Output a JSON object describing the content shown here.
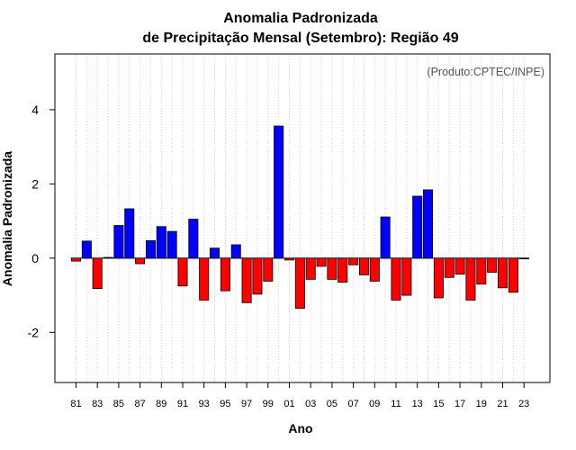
{
  "chart_data": {
    "type": "bar",
    "title_line1": "Anomalia Padronizada",
    "title_line2": "de Precipitação Mensal (Setembro): Região 49",
    "xlabel": "Ano",
    "ylabel": "Anomalia Padronizada",
    "credit": "(Produto:CPTEC/INPE)",
    "ylim": [
      -3.35,
      5.5
    ],
    "yticks": [
      -2,
      0,
      2,
      4
    ],
    "ytick_labels": [
      "-2",
      "0",
      "2",
      "4"
    ],
    "grid": "vertical dotted",
    "colors": {
      "positive": "#0000ff",
      "negative": "#ff0000",
      "grid": "#d3d3d3"
    },
    "categories": [
      "81",
      "82",
      "83",
      "84",
      "85",
      "86",
      "87",
      "88",
      "89",
      "90",
      "91",
      "92",
      "93",
      "94",
      "95",
      "96",
      "97",
      "98",
      "99",
      "00",
      "01",
      "02",
      "03",
      "04",
      "05",
      "06",
      "07",
      "08",
      "09",
      "10",
      "11",
      "12",
      "13",
      "14",
      "15",
      "16",
      "17",
      "18",
      "19",
      "20",
      "21",
      "22",
      "23"
    ],
    "xtick_labels": [
      "81",
      "83",
      "85",
      "87",
      "89",
      "91",
      "93",
      "95",
      "97",
      "99",
      "01",
      "03",
      "05",
      "07",
      "09",
      "11",
      "13",
      "15",
      "17",
      "19",
      "21",
      "23"
    ],
    "values": [
      -0.08,
      0.46,
      -0.82,
      0.02,
      0.88,
      1.33,
      -0.15,
      0.47,
      0.85,
      0.72,
      -0.75,
      1.05,
      -1.13,
      0.27,
      -0.88,
      0.36,
      -1.2,
      -0.97,
      -0.62,
      3.56,
      -0.05,
      -1.35,
      -0.57,
      -0.22,
      -0.57,
      -0.65,
      -0.18,
      -0.45,
      -0.62,
      1.11,
      -1.13,
      -1.0,
      1.67,
      1.84,
      -1.07,
      -0.52,
      -0.43,
      -1.13,
      -0.7,
      -0.38,
      -0.8,
      -0.92,
      -0.02
    ]
  }
}
